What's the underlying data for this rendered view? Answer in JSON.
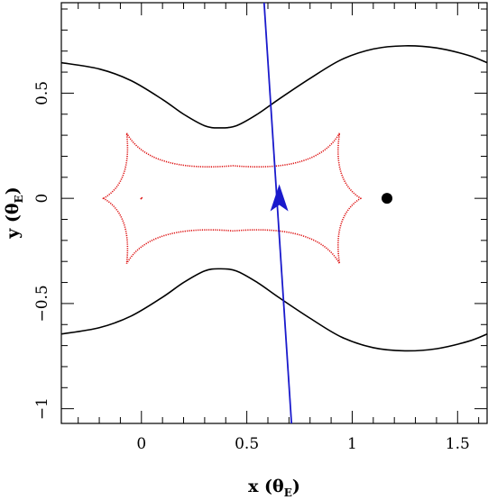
{
  "chart_data": {
    "type": "scatter",
    "xlabel": {
      "prefix": "x (",
      "symbol": "θ",
      "sub": "E",
      "suffix": ")"
    },
    "ylabel": {
      "prefix": "y (",
      "symbol": "θ",
      "sub": "E",
      "suffix": ")"
    },
    "xlim": [
      -0.38,
      1.64
    ],
    "ylim": [
      -1.07,
      0.93
    ],
    "xticks": [
      0,
      0.5,
      1,
      1.5
    ],
    "xtick_labels": [
      "0",
      "0.5",
      "1",
      "1.5"
    ],
    "yticks": [
      -1,
      -0.5,
      0,
      0.5
    ],
    "ytick_labels": [
      "−1",
      "−0.5",
      "0",
      "0.5"
    ],
    "critical_curves": {
      "color": "#000000",
      "upper": [
        [
          -0.38,
          0.645
        ],
        [
          -0.2,
          0.615
        ],
        [
          -0.05,
          0.56
        ],
        [
          0.1,
          0.47
        ],
        [
          0.2,
          0.4
        ],
        [
          0.3,
          0.345
        ],
        [
          0.37,
          0.335
        ],
        [
          0.45,
          0.345
        ],
        [
          0.55,
          0.4
        ],
        [
          0.65,
          0.47
        ],
        [
          0.8,
          0.57
        ],
        [
          0.95,
          0.66
        ],
        [
          1.1,
          0.71
        ],
        [
          1.25,
          0.725
        ],
        [
          1.4,
          0.715
        ],
        [
          1.55,
          0.68
        ],
        [
          1.64,
          0.645
        ]
      ],
      "lower": [
        [
          -0.38,
          -0.645
        ],
        [
          -0.2,
          -0.615
        ],
        [
          -0.05,
          -0.56
        ],
        [
          0.1,
          -0.47
        ],
        [
          0.2,
          -0.4
        ],
        [
          0.3,
          -0.345
        ],
        [
          0.37,
          -0.335
        ],
        [
          0.45,
          -0.345
        ],
        [
          0.55,
          -0.4
        ],
        [
          0.65,
          -0.47
        ],
        [
          0.8,
          -0.57
        ],
        [
          0.95,
          -0.66
        ],
        [
          1.1,
          -0.71
        ],
        [
          1.25,
          -0.725
        ],
        [
          1.4,
          -0.715
        ],
        [
          1.55,
          -0.68
        ],
        [
          1.64,
          -0.645
        ]
      ]
    },
    "caustic": {
      "color": "#dd1111",
      "cusps": [
        {
          "name": "left",
          "x": -0.18,
          "y": 0
        },
        {
          "name": "top-left",
          "x": -0.07,
          "y": 0.31
        },
        {
          "name": "top-right",
          "x": 0.94,
          "y": 0.31
        },
        {
          "name": "right",
          "x": 1.04,
          "y": 0
        },
        {
          "name": "bottom-right",
          "x": 0.94,
          "y": -0.31
        },
        {
          "name": "bottom-left",
          "x": -0.07,
          "y": -0.31
        }
      ],
      "top_mid_y": 0.155,
      "small_mark": {
        "x": 0.0,
        "y": 0.0
      }
    },
    "source_trajectory": {
      "color": "#1a1acc",
      "start": [
        0.582,
        0.93
      ],
      "end": [
        0.712,
        -1.07
      ],
      "arrow": {
        "x": 0.654,
        "y": -0.01
      }
    },
    "point": {
      "x": 1.165,
      "y": 0.0,
      "color": "#000000"
    }
  }
}
